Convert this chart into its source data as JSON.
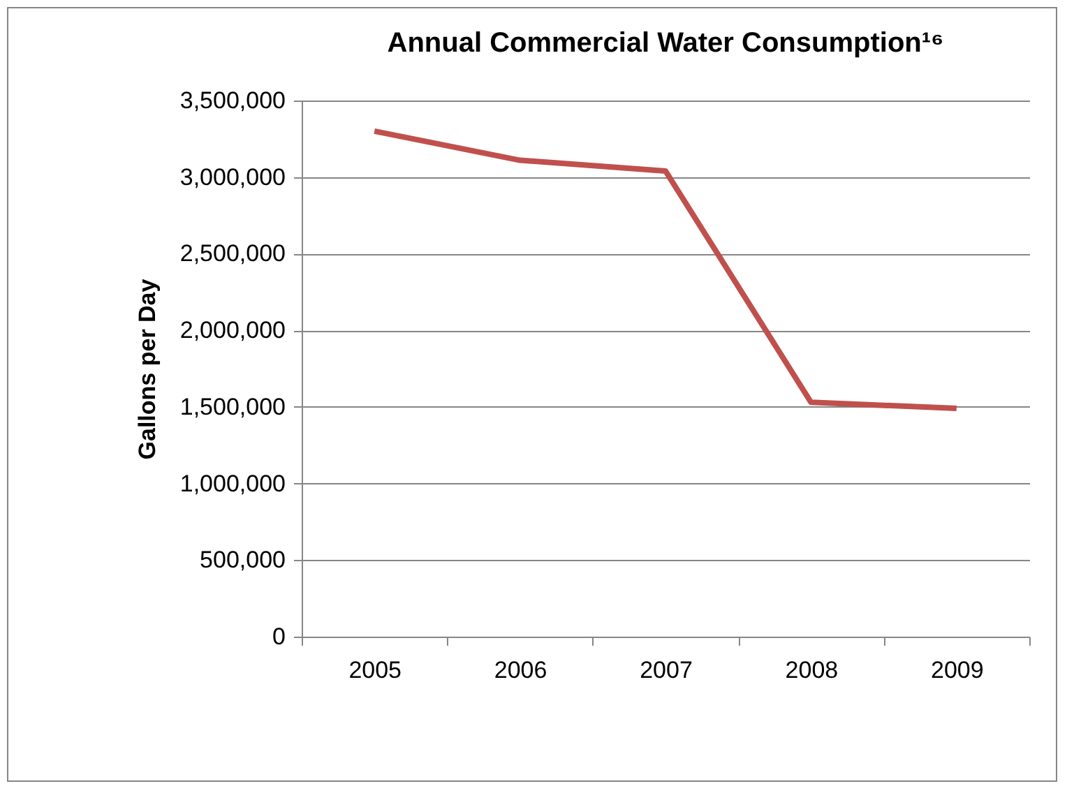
{
  "chart_data": {
    "type": "line",
    "title": "Annual Commercial Water Consumption¹⁶",
    "ylabel": "Gallons per Day",
    "categories": [
      "2005",
      "2006",
      "2007",
      "2008",
      "2009"
    ],
    "series": [
      {
        "color": "#c0504d",
        "values": [
          3300000,
          3110000,
          3040000,
          1530000,
          1490000
        ]
      }
    ],
    "ylim": [
      0,
      3500000
    ],
    "yticks": [
      0,
      {
        "value": 500000,
        "label": "500,000"
      },
      {
        "value": 1000000,
        "label": "1,000,000"
      },
      {
        "value": 1500000,
        "label": "1,500,000"
      },
      {
        "value": 2000000,
        "label": "2,000,000"
      },
      {
        "value": 2500000,
        "label": "2,500,000"
      },
      {
        "value": 3000000,
        "label": "3,000,000"
      },
      {
        "value": 3500000,
        "label": "3,500,000"
      }
    ],
    "grid": "y",
    "marker": "none",
    "line_style": "solid"
  }
}
